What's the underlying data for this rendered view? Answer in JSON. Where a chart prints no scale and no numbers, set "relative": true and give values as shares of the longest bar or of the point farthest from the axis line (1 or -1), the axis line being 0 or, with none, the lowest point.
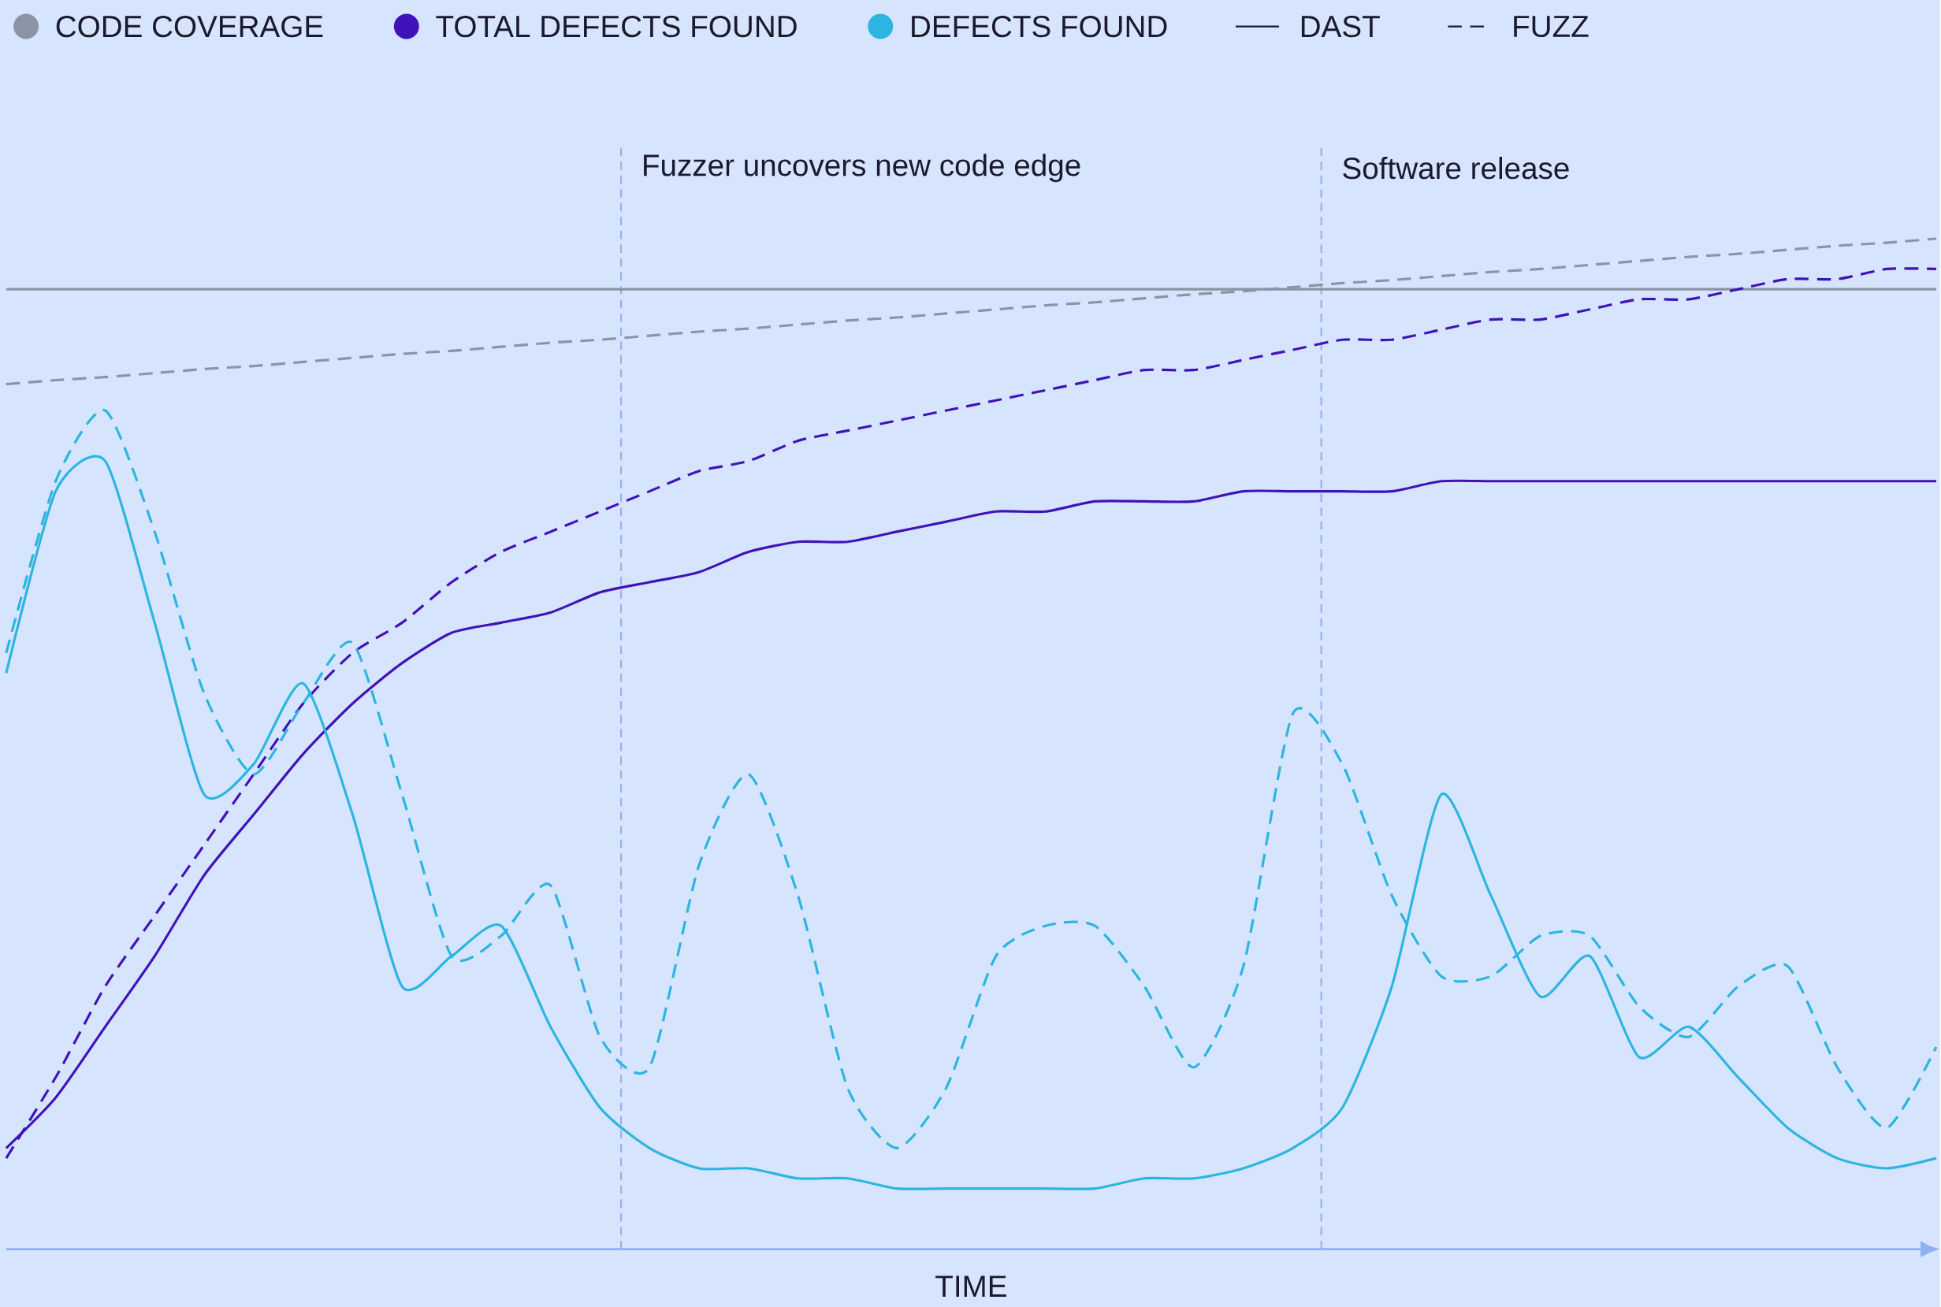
{
  "chart_data": {
    "type": "line",
    "relative": true,
    "xlabel": "TIME",
    "legend": "top left",
    "categories": [
      null,
      null,
      null,
      null,
      null,
      null,
      null,
      null,
      null,
      null,
      null,
      null,
      null,
      null,
      null,
      null,
      null,
      null,
      null,
      null,
      null,
      null,
      null,
      null,
      null,
      null,
      null,
      null,
      null,
      null,
      null,
      null,
      null,
      null,
      null,
      null,
      null,
      null,
      null,
      null
    ],
    "series": [
      {
        "name": "CODE COVERAGE",
        "color": "#8a94a6",
        "line_style": "solid",
        "values": [
          0.95,
          0.95,
          0.95,
          0.95,
          0.95,
          0.95,
          0.95,
          0.95,
          0.95,
          0.95,
          0.95,
          0.95,
          0.95,
          0.95,
          0.95,
          0.95,
          0.95,
          0.95,
          0.95,
          0.95,
          0.95,
          0.95,
          0.95,
          0.95,
          0.95,
          0.95,
          0.95,
          0.95,
          0.95,
          0.95,
          0.95,
          0.95,
          0.95,
          0.95,
          0.95,
          0.95,
          0.95,
          0.95,
          0.95,
          0.95
        ]
      },
      {
        "color": "#8a94a6",
        "line_style": "dashed",
        "values": [
          0.856,
          0.86,
          0.863,
          0.867,
          0.871,
          0.874,
          0.878,
          0.882,
          0.886,
          0.889,
          0.893,
          0.897,
          0.9,
          0.904,
          0.908,
          0.911,
          0.915,
          0.919,
          0.922,
          0.926,
          0.93,
          0.934,
          0.937,
          0.941,
          0.945,
          0.948,
          0.952,
          0.956,
          0.959,
          0.963,
          0.967,
          0.97,
          0.974,
          0.978,
          0.982,
          0.985,
          0.989,
          0.993,
          0.996,
          1.0
        ]
      },
      {
        "name": "TOTAL DEFECTS FOUND",
        "color": "#3f13b9",
        "line_style": "solid",
        "values": [
          0.1,
          0.15,
          0.22,
          0.29,
          0.37,
          0.43,
          0.49,
          0.54,
          0.58,
          0.61,
          0.62,
          0.63,
          0.65,
          0.66,
          0.67,
          0.69,
          0.7,
          0.7,
          0.71,
          0.72,
          0.73,
          0.73,
          0.74,
          0.74,
          0.74,
          0.75,
          0.75,
          0.75,
          0.75,
          0.76,
          0.76,
          0.76,
          0.76,
          0.76,
          0.76,
          0.76,
          0.76,
          0.76,
          0.76,
          0.76
        ]
      },
      {
        "color": "#3f13b9",
        "line_style": "dashed",
        "values": [
          0.09,
          0.17,
          0.26,
          0.33,
          0.4,
          0.47,
          0.54,
          0.59,
          0.62,
          0.66,
          0.69,
          0.71,
          0.73,
          0.75,
          0.77,
          0.78,
          0.8,
          0.81,
          0.82,
          0.83,
          0.84,
          0.85,
          0.86,
          0.87,
          0.87,
          0.88,
          0.89,
          0.9,
          0.9,
          0.91,
          0.92,
          0.92,
          0.93,
          0.94,
          0.94,
          0.95,
          0.96,
          0.96,
          0.97,
          0.97
        ]
      },
      {
        "name": "DEFECTS FOUND",
        "color": "#2bb5e0",
        "line_style": "solid",
        "values": [
          0.57,
          0.75,
          0.78,
          0.62,
          0.45,
          0.48,
          0.56,
          0.43,
          0.26,
          0.29,
          0.32,
          0.22,
          0.14,
          0.1,
          0.08,
          0.08,
          0.07,
          0.07,
          0.06,
          0.06,
          0.06,
          0.06,
          0.06,
          0.07,
          0.07,
          0.08,
          0.1,
          0.14,
          0.26,
          0.45,
          0.35,
          0.25,
          0.29,
          0.19,
          0.22,
          0.17,
          0.12,
          0.09,
          0.08,
          0.09
        ]
      },
      {
        "color": "#2bb5e0",
        "line_style": "dashed",
        "values": [
          0.59,
          0.76,
          0.83,
          0.71,
          0.55,
          0.47,
          0.54,
          0.6,
          0.45,
          0.29,
          0.31,
          0.36,
          0.21,
          0.18,
          0.38,
          0.47,
          0.35,
          0.16,
          0.1,
          0.16,
          0.29,
          0.32,
          0.32,
          0.26,
          0.18,
          0.28,
          0.53,
          0.48,
          0.35,
          0.27,
          0.27,
          0.31,
          0.31,
          0.24,
          0.21,
          0.26,
          0.28,
          0.18,
          0.12,
          0.2
        ]
      }
    ],
    "annotations": [
      "DAST",
      "FUZZ",
      "Fuzzer uncovers new code edge",
      "Software release"
    ]
  }
}
